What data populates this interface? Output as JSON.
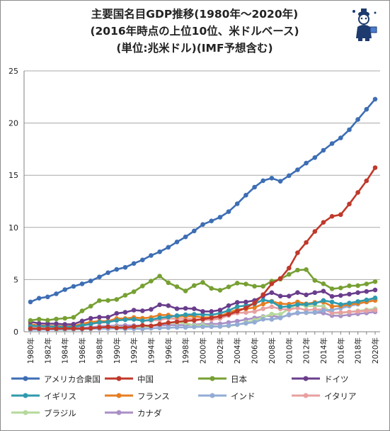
{
  "title_lines": [
    "主要国名目GDP推移(1980年～2020年)",
    "(2016年時点の上位10位、米ドルベース)",
    "(単位:兆米ドル)(IMF予想含む)"
  ],
  "chart_data": {
    "type": "line",
    "title": "主要国名目GDP推移(1980年～2020年) (2016年時点の上位10位、米ドルベース) (単位:兆米ドル)(IMF予想含む)",
    "xlabel": "",
    "ylabel": "",
    "ylim": [
      0,
      25
    ],
    "yticks": [
      0,
      5,
      10,
      15,
      20,
      25
    ],
    "xticks": [
      "1980年",
      "1982年",
      "1984年",
      "1986年",
      "1988年",
      "1990年",
      "1992年",
      "1994年",
      "1996年",
      "1998年",
      "2000年",
      "2002年",
      "2004年",
      "2006年",
      "2008年",
      "2010年",
      "2012年",
      "2014年",
      "2016年",
      "2018年",
      "2020年"
    ],
    "x": [
      1980,
      1981,
      1982,
      1983,
      1984,
      1985,
      1986,
      1987,
      1988,
      1989,
      1990,
      1991,
      1992,
      1993,
      1994,
      1995,
      1996,
      1997,
      1998,
      1999,
      2000,
      2001,
      2002,
      2003,
      2004,
      2005,
      2006,
      2007,
      2008,
      2009,
      2010,
      2011,
      2012,
      2013,
      2014,
      2015,
      2016,
      2017,
      2018,
      2019,
      2020
    ],
    "grid": true,
    "legend_position": "bottom",
    "series": [
      {
        "name": "アメリカ合衆国",
        "color": "#3d6eb4",
        "values": [
          2.86,
          3.21,
          3.34,
          3.64,
          4.04,
          4.35,
          4.59,
          4.87,
          5.25,
          5.66,
          5.98,
          6.17,
          6.54,
          6.88,
          7.31,
          7.66,
          8.1,
          8.61,
          9.09,
          9.66,
          10.28,
          10.62,
          10.98,
          11.51,
          12.27,
          13.09,
          13.86,
          14.48,
          14.72,
          14.42,
          14.96,
          15.52,
          16.16,
          16.69,
          17.39,
          18.04,
          18.57,
          19.36,
          20.34,
          21.32,
          22.29
        ]
      },
      {
        "name": "中国",
        "color": "#c0392b",
        "values": [
          0.3,
          0.29,
          0.28,
          0.3,
          0.31,
          0.31,
          0.3,
          0.33,
          0.41,
          0.46,
          0.39,
          0.41,
          0.49,
          0.62,
          0.56,
          0.73,
          0.86,
          0.96,
          1.03,
          1.09,
          1.21,
          1.34,
          1.47,
          1.66,
          1.96,
          2.29,
          2.75,
          3.55,
          4.6,
          5.11,
          6.1,
          7.57,
          8.56,
          9.61,
          10.48,
          11.06,
          11.22,
          12.24,
          13.35,
          14.46,
          15.73
        ]
      },
      {
        "name": "日本",
        "color": "#77a033",
        "values": [
          1.09,
          1.2,
          1.11,
          1.22,
          1.29,
          1.38,
          2.0,
          2.45,
          2.98,
          3.0,
          3.1,
          3.5,
          3.84,
          4.39,
          4.85,
          5.33,
          4.7,
          4.32,
          3.91,
          4.43,
          4.73,
          4.16,
          3.98,
          4.3,
          4.66,
          4.57,
          4.36,
          4.36,
          4.85,
          5.04,
          5.5,
          5.91,
          5.96,
          4.92,
          4.6,
          4.12,
          4.2,
          4.4,
          4.42,
          4.58,
          4.8
        ]
      },
      {
        "name": "ドイツ",
        "color": "#6a3d8c",
        "values": [
          0.95,
          0.8,
          0.78,
          0.77,
          0.71,
          0.73,
          1.03,
          1.29,
          1.4,
          1.4,
          1.76,
          1.86,
          2.07,
          2.01,
          2.15,
          2.59,
          2.5,
          2.21,
          2.24,
          2.2,
          1.95,
          1.95,
          2.08,
          2.5,
          2.81,
          2.85,
          3.0,
          3.43,
          3.75,
          3.42,
          3.42,
          3.76,
          3.54,
          3.75,
          3.89,
          3.38,
          3.48,
          3.6,
          3.75,
          3.86,
          4.0
        ]
      },
      {
        "name": "イギリス",
        "color": "#2f9aad",
        "values": [
          0.56,
          0.54,
          0.51,
          0.48,
          0.46,
          0.49,
          0.6,
          0.74,
          0.91,
          0.93,
          1.09,
          1.15,
          1.18,
          1.06,
          1.14,
          1.34,
          1.41,
          1.55,
          1.64,
          1.67,
          1.65,
          1.62,
          1.77,
          2.04,
          2.41,
          2.51,
          2.68,
          3.06,
          2.89,
          2.38,
          2.43,
          2.6,
          2.63,
          2.71,
          3.0,
          2.85,
          2.62,
          2.75,
          2.9,
          3.05,
          3.25
        ]
      },
      {
        "name": "フランス",
        "color": "#e67e22",
        "values": [
          0.7,
          0.61,
          0.58,
          0.55,
          0.53,
          0.55,
          0.77,
          0.93,
          1.01,
          1.02,
          1.27,
          1.27,
          1.37,
          1.3,
          1.37,
          1.6,
          1.6,
          1.45,
          1.5,
          1.49,
          1.37,
          1.38,
          1.5,
          1.84,
          2.12,
          2.2,
          2.32,
          2.66,
          2.92,
          2.69,
          2.64,
          2.86,
          2.68,
          2.81,
          2.85,
          2.43,
          2.47,
          2.6,
          2.72,
          2.85,
          3.0
        ]
      },
      {
        "name": "インド",
        "color": "#92acd6",
        "values": [
          0.19,
          0.2,
          0.21,
          0.22,
          0.22,
          0.24,
          0.25,
          0.28,
          0.3,
          0.3,
          0.33,
          0.28,
          0.29,
          0.28,
          0.33,
          0.36,
          0.39,
          0.42,
          0.42,
          0.46,
          0.48,
          0.49,
          0.51,
          0.6,
          0.7,
          0.81,
          0.92,
          1.2,
          1.19,
          1.32,
          1.66,
          1.82,
          1.83,
          1.86,
          2.04,
          2.1,
          2.26,
          2.45,
          2.65,
          2.88,
          3.1
        ]
      },
      {
        "name": "イタリア",
        "color": "#e8a0a0",
        "values": [
          0.48,
          0.43,
          0.43,
          0.44,
          0.43,
          0.45,
          0.63,
          0.78,
          0.85,
          0.93,
          1.14,
          1.2,
          1.29,
          1.05,
          1.07,
          1.13,
          1.3,
          1.23,
          1.25,
          1.23,
          1.14,
          1.16,
          1.27,
          1.57,
          1.8,
          1.85,
          1.94,
          2.2,
          2.39,
          2.19,
          2.13,
          2.28,
          2.07,
          2.13,
          2.14,
          1.82,
          1.85,
          1.9,
          1.95,
          2.02,
          2.08
        ]
      },
      {
        "name": "ブラジル",
        "color": "#b5d99c",
        "values": [
          0.24,
          0.26,
          0.28,
          0.2,
          0.2,
          0.22,
          0.26,
          0.29,
          0.33,
          0.44,
          0.46,
          0.41,
          0.39,
          0.44,
          0.55,
          0.77,
          0.84,
          0.87,
          0.84,
          0.59,
          0.65,
          0.55,
          0.51,
          0.56,
          0.67,
          0.89,
          1.11,
          1.4,
          1.7,
          1.67,
          2.21,
          2.62,
          2.46,
          2.47,
          2.45,
          1.8,
          1.8,
          1.9,
          2.0,
          2.1,
          2.2
        ]
      },
      {
        "name": "カナダ",
        "color": "#a98fc6",
        "values": [
          0.27,
          0.3,
          0.31,
          0.34,
          0.36,
          0.37,
          0.38,
          0.43,
          0.5,
          0.56,
          0.59,
          0.61,
          0.59,
          0.58,
          0.58,
          0.6,
          0.63,
          0.65,
          0.63,
          0.67,
          0.74,
          0.74,
          0.76,
          0.89,
          1.02,
          1.17,
          1.32,
          1.46,
          1.55,
          1.37,
          1.61,
          1.79,
          1.83,
          1.84,
          1.8,
          1.55,
          1.53,
          1.63,
          1.72,
          1.8,
          1.9
        ]
      }
    ]
  },
  "legend_rows": [
    [
      "アメリカ合衆国",
      "中国",
      "日本",
      "ドイツ"
    ],
    [
      "イギリス",
      "フランス",
      "インド",
      "イタリア"
    ],
    [
      "ブラジル",
      "カナダ"
    ]
  ]
}
